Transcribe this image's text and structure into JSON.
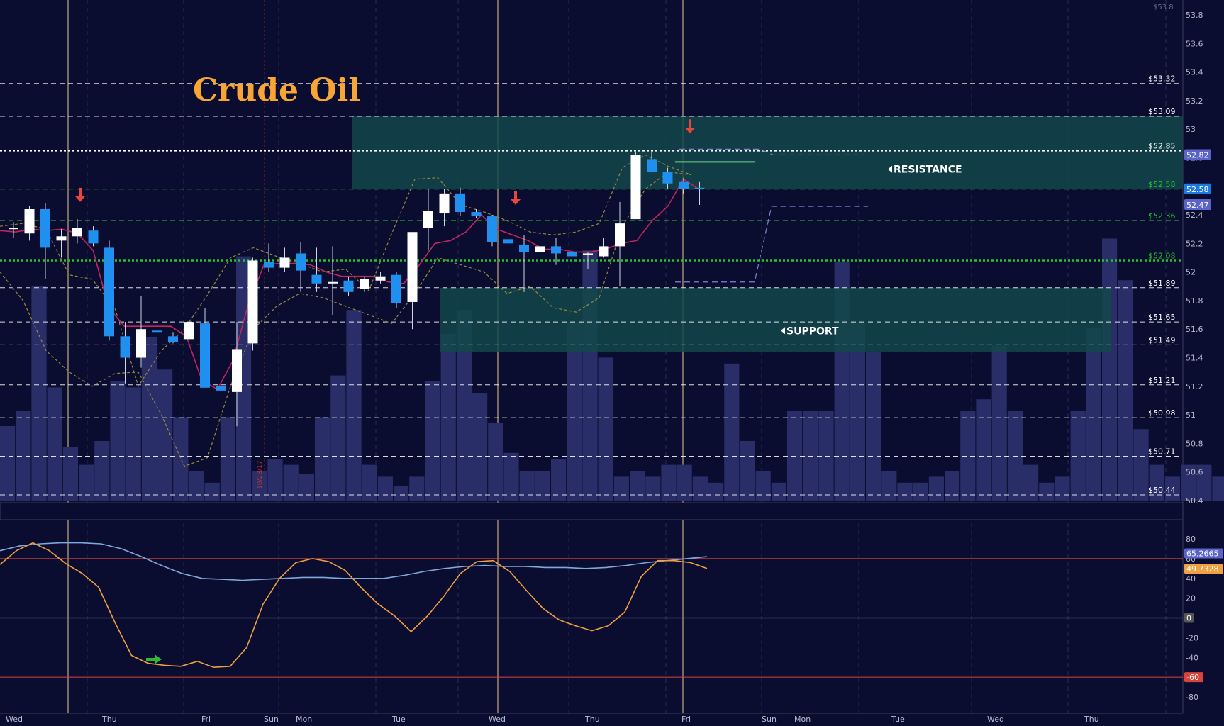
{
  "title": "Crude Oil",
  "colors": {
    "background": "#0a0c30",
    "title": "#f7a534",
    "bull_candle": "#ffffff",
    "bear_candle": "#1f8ff0",
    "volume": "#2a2e68",
    "zone": "#12474a",
    "ma": "#c2245c",
    "envelope": "#9a8a3a",
    "oscillator_fast": "#f0a040",
    "oscillator_slow": "#7fa8dc",
    "band_line": "#d6453c",
    "arrow_red": "#e8463c",
    "arrow_green": "#2fb835",
    "level_green": "#22c42a"
  },
  "chart_data": [
    {
      "type": "candlestick",
      "title": "Crude Oil",
      "y_axis": {
        "ylim": [
          50.4,
          53.8
        ],
        "ticks": [
          "53.8",
          "53.6",
          "53.4",
          "53.2",
          "53",
          "52.8",
          "52.6",
          "52.4",
          "52.2",
          "52",
          "51.8",
          "51.6",
          "51.4",
          "51.2",
          "51",
          "50.8",
          "50.6",
          "50.4"
        ],
        "top_label": "$53.8"
      },
      "x_axis": {
        "labels": [
          "Wed",
          "Thu",
          "Fri",
          "Sun",
          "Mon",
          "Tue",
          "Wed",
          "Thu",
          "Fri",
          "Sun",
          "Mon",
          "Tue",
          "Wed",
          "Thu"
        ]
      },
      "price_levels": [
        {
          "price": 53.32,
          "label": "$53.32",
          "style": "dashed",
          "color": "#ffffff"
        },
        {
          "price": 53.09,
          "label": "$53.09",
          "style": "dashed",
          "color": "#ffffff"
        },
        {
          "price": 52.85,
          "label": "$52.85",
          "style": "dotted-bold",
          "color": "#ffffff"
        },
        {
          "price": 52.58,
          "label": "$52.58",
          "style": "dashed",
          "color": "#22c42a"
        },
        {
          "price": 52.36,
          "label": "$52.36",
          "style": "dashed",
          "color": "#22c42a"
        },
        {
          "price": 52.08,
          "label": "$52.08",
          "style": "dotted-bold",
          "color": "#22c42a"
        },
        {
          "price": 51.89,
          "label": "$51.89",
          "style": "dashed",
          "color": "#ffffff"
        },
        {
          "price": 51.65,
          "label": "$51.65",
          "style": "dashed",
          "color": "#ffffff"
        },
        {
          "price": 51.49,
          "label": "$51.49",
          "style": "dashed",
          "color": "#ffffff"
        },
        {
          "price": 51.21,
          "label": "$51.21",
          "style": "dashed",
          "color": "#ffffff"
        },
        {
          "price": 50.98,
          "label": "$50.98",
          "style": "dashed",
          "color": "#ffffff"
        },
        {
          "price": 50.71,
          "label": "$50.71",
          "style": "dashed",
          "color": "#ffffff"
        },
        {
          "price": 50.44,
          "label": "$50.44",
          "style": "dashed",
          "color": "#ffffff"
        }
      ],
      "zones": [
        {
          "name": "resistance",
          "label": "RESISTANCE",
          "top": 53.09,
          "bottom": 52.58
        },
        {
          "name": "support",
          "label": "SUPPORT",
          "top": 51.89,
          "bottom": 51.44
        }
      ],
      "badges": [
        {
          "value": "52.82",
          "price": 52.82,
          "color": "#5a63c8"
        },
        {
          "value": "52.58",
          "price": 52.58,
          "color": "#1e78e0"
        },
        {
          "value": "52.47",
          "price": 52.47,
          "color": "#5a63c8"
        }
      ],
      "candles": [
        {
          "o": 52.3,
          "h": 52.35,
          "l": 52.24,
          "c": 52.31
        },
        {
          "o": 52.27,
          "h": 52.46,
          "l": 52.22,
          "c": 52.44
        },
        {
          "o": 52.44,
          "h": 52.48,
          "l": 51.95,
          "c": 52.17
        },
        {
          "o": 52.22,
          "h": 52.3,
          "l": 52.1,
          "c": 52.25
        },
        {
          "o": 52.25,
          "h": 52.37,
          "l": 52.2,
          "c": 52.31
        },
        {
          "o": 52.29,
          "h": 52.32,
          "l": 52.18,
          "c": 52.2
        },
        {
          "o": 52.17,
          "h": 52.22,
          "l": 51.52,
          "c": 51.55
        },
        {
          "o": 51.55,
          "h": 51.65,
          "l": 51.22,
          "c": 51.4
        },
        {
          "o": 51.4,
          "h": 51.83,
          "l": 51.33,
          "c": 51.6
        },
        {
          "o": 51.59,
          "h": 51.63,
          "l": 51.5,
          "c": 51.58
        },
        {
          "o": 51.55,
          "h": 51.58,
          "l": 51.5,
          "c": 51.51
        },
        {
          "o": 51.53,
          "h": 51.67,
          "l": 51.5,
          "c": 51.65
        },
        {
          "o": 51.64,
          "h": 51.75,
          "l": 51.2,
          "c": 51.19
        },
        {
          "o": 51.2,
          "h": 51.5,
          "l": 50.88,
          "c": 51.17
        },
        {
          "o": 51.16,
          "h": 51.65,
          "l": 50.92,
          "c": 51.46
        },
        {
          "o": 51.5,
          "h": 52.1,
          "l": 51.45,
          "c": 52.08
        },
        {
          "o": 52.07,
          "h": 52.2,
          "l": 52.0,
          "c": 52.03
        },
        {
          "o": 52.03,
          "h": 52.17,
          "l": 52.0,
          "c": 52.1
        },
        {
          "o": 52.13,
          "h": 52.21,
          "l": 51.86,
          "c": 52.01
        },
        {
          "o": 51.98,
          "h": 52.17,
          "l": 51.86,
          "c": 51.92
        },
        {
          "o": 51.92,
          "h": 52.18,
          "l": 51.7,
          "c": 51.93
        },
        {
          "o": 51.94,
          "h": 51.97,
          "l": 51.83,
          "c": 51.86
        },
        {
          "o": 51.88,
          "h": 51.97,
          "l": 51.86,
          "c": 51.95
        },
        {
          "o": 51.94,
          "h": 52.0,
          "l": 51.92,
          "c": 51.97
        },
        {
          "o": 51.98,
          "h": 52.0,
          "l": 51.75,
          "c": 51.78
        },
        {
          "o": 51.79,
          "h": 52.25,
          "l": 51.6,
          "c": 52.28
        },
        {
          "o": 52.31,
          "h": 52.58,
          "l": 52.15,
          "c": 52.43
        },
        {
          "o": 52.41,
          "h": 52.58,
          "l": 52.32,
          "c": 52.55
        },
        {
          "o": 52.55,
          "h": 52.59,
          "l": 52.39,
          "c": 52.42
        },
        {
          "o": 52.42,
          "h": 52.44,
          "l": 52.38,
          "c": 52.39
        },
        {
          "o": 52.39,
          "h": 52.4,
          "l": 52.18,
          "c": 52.21
        },
        {
          "o": 52.23,
          "h": 52.43,
          "l": 52.14,
          "c": 52.2
        },
        {
          "o": 52.19,
          "h": 52.26,
          "l": 51.86,
          "c": 52.14
        },
        {
          "o": 52.14,
          "h": 52.23,
          "l": 52.0,
          "c": 52.18
        },
        {
          "o": 52.18,
          "h": 52.24,
          "l": 52.05,
          "c": 52.13
        },
        {
          "o": 52.14,
          "h": 52.16,
          "l": 52.1,
          "c": 52.11
        },
        {
          "o": 52.12,
          "h": 52.14,
          "l": 52.02,
          "c": 52.13
        },
        {
          "o": 52.11,
          "h": 52.24,
          "l": 52.1,
          "c": 52.18
        },
        {
          "o": 52.18,
          "h": 52.49,
          "l": 51.9,
          "c": 52.34
        },
        {
          "o": 52.37,
          "h": 52.84,
          "l": 52.37,
          "c": 52.82
        },
        {
          "o": 52.79,
          "h": 52.84,
          "l": 52.7,
          "c": 52.7
        },
        {
          "o": 52.7,
          "h": 52.73,
          "l": 52.58,
          "c": 52.62
        },
        {
          "o": 52.63,
          "h": 52.66,
          "l": 52.55,
          "c": 52.58
        },
        {
          "o": 52.59,
          "h": 52.63,
          "l": 52.47,
          "c": 52.58
        }
      ],
      "volumes": [
        0.25,
        0.3,
        0.72,
        0.38,
        0.18,
        0.12,
        0.2,
        0.4,
        0.38,
        0.55,
        0.44,
        0.28,
        0.1,
        0.06,
        0.28,
        0.82,
        0.1,
        0.14,
        0.12,
        0.09,
        0.28,
        0.42,
        0.64,
        0.12,
        0.08,
        0.05,
        0.08,
        0.4,
        0.56,
        0.64,
        0.36,
        0.26,
        0.16,
        0.1,
        0.1,
        0.14,
        0.6,
        0.84,
        0.48,
        0.08,
        0.1,
        0.08,
        0.12,
        0.12,
        0.08,
        0.06,
        0.46,
        0.2,
        0.1,
        0.06,
        0.3,
        0.3,
        0.3,
        0.8,
        0.6,
        0.5,
        0.1,
        0.06,
        0.06,
        0.08,
        0.1,
        0.3,
        0.34,
        0.52,
        0.3,
        0.12,
        0.06,
        0.08,
        0.3,
        0.58,
        0.88,
        0.74,
        0.24,
        0.12,
        0.08,
        0.12,
        0.12,
        0.08
      ],
      "moving_average": [
        52.29,
        52.28,
        52.3,
        52.29,
        52.3,
        52.27,
        52.15,
        51.75,
        51.62,
        51.62,
        51.62,
        51.62,
        51.55,
        51.24,
        51.18,
        51.38,
        51.78,
        52.05,
        52.06,
        52.06,
        52.05,
        52.0,
        51.97,
        51.97,
        51.97,
        51.93,
        51.92,
        52.05,
        52.2,
        52.22,
        52.28,
        52.4,
        52.3,
        52.26,
        52.22,
        52.16,
        52.16,
        52.14,
        52.14,
        52.16,
        52.2,
        52.22,
        52.36,
        52.46,
        52.65,
        52.58
      ],
      "envelope_upper": [
        52.32,
        52.34,
        52.3,
        51.98,
        51.95,
        51.74,
        51.2,
        51.45,
        51.6,
        51.84,
        52.1,
        52.17,
        52.11,
        52.06,
        52.0,
        52.02,
        51.87,
        52.27,
        52.65,
        52.66,
        52.47,
        52.42,
        52.36,
        52.28,
        52.26,
        52.28,
        52.34,
        52.73,
        52.82,
        52.74,
        52.68
      ],
      "envelope_lower": [
        52.0,
        51.8,
        51.45,
        51.3,
        51.2,
        51.29,
        51.3,
        51.0,
        50.64,
        50.7,
        51.2,
        51.6,
        51.76,
        51.85,
        51.82,
        51.76,
        51.7,
        51.64,
        51.85,
        52.1,
        52.05,
        52.0,
        51.85,
        51.9,
        51.75,
        51.72,
        51.82,
        52.32,
        52.58,
        52.7,
        52.68
      ],
      "annotations": [
        {
          "label": "RESISTANCE",
          "type": "zone-label"
        },
        {
          "label": "SUPPORT",
          "type": "zone-label"
        },
        {
          "label": "10/28/17",
          "type": "date-marker"
        }
      ],
      "signals": [
        {
          "type": "down-arrow",
          "price": 52.5
        },
        {
          "type": "down-arrow",
          "price": 52.48
        },
        {
          "type": "down-arrow",
          "price": 52.98
        }
      ],
      "projection": {
        "upper_start_price": 52.86,
        "upper_end_price": 52.82,
        "lower_start_price": 51.93,
        "lower_end_price": 52.46
      }
    },
    {
      "type": "line",
      "title": "",
      "ylim": [
        -90,
        90
      ],
      "ticks": [
        "80",
        "60",
        "40",
        "20",
        "0",
        "-20",
        "-40",
        "-60",
        "-80"
      ],
      "reference_lines": [
        60,
        0,
        -60
      ],
      "badges": [
        {
          "value": "65.2665",
          "color": "#5a63c8"
        },
        {
          "value": "49.7328",
          "color": "#f0a040"
        },
        {
          "value": "0",
          "color": "#555555"
        },
        {
          "value": "-60",
          "color": "#d6453c"
        }
      ],
      "series": [
        {
          "values": [
            68,
            73,
            75,
            76,
            76,
            75,
            70,
            62,
            53,
            45,
            40,
            39,
            38,
            39,
            40,
            41,
            41,
            40,
            40,
            40,
            43,
            47,
            50,
            52,
            53,
            52,
            52,
            51,
            51,
            50,
            51,
            53,
            56,
            58,
            60,
            62
          ]
        },
        {
          "values": [
            54,
            68,
            76,
            68,
            55,
            45,
            31,
            -5,
            -38,
            -46,
            -48,
            -49,
            -44,
            -50,
            -49,
            -30,
            14,
            40,
            56,
            60,
            57,
            48,
            30,
            14,
            2,
            -14,
            2,
            22,
            45,
            57,
            58,
            47,
            28,
            10,
            -2,
            -8,
            -13,
            -8,
            6,
            42,
            58,
            58,
            56,
            50
          ]
        }
      ],
      "signals": [
        {
          "type": "right-arrow",
          "value": -42
        }
      ]
    }
  ]
}
